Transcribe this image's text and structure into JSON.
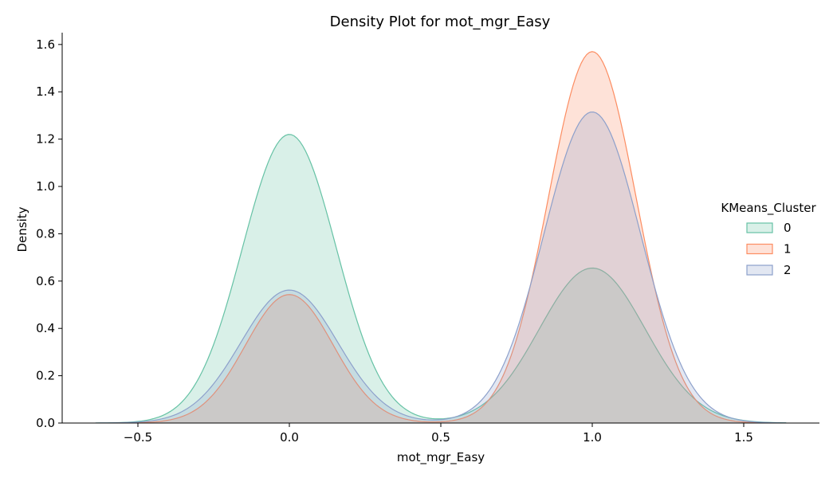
{
  "chart_data": {
    "type": "area",
    "title": "Density Plot for mot_mgr_Easy",
    "xlabel": "mot_mgr_Easy",
    "ylabel": "Density",
    "xlim": [
      -0.75,
      1.75
    ],
    "ylim": [
      0,
      1.65
    ],
    "xticks": [
      -0.5,
      0.0,
      0.5,
      1.0,
      1.5
    ],
    "xtick_labels": [
      "−0.5",
      "0.0",
      "0.5",
      "1.0",
      "1.5"
    ],
    "yticks": [
      0.0,
      0.2,
      0.4,
      0.6,
      0.8,
      1.0,
      1.2,
      1.4,
      1.6
    ],
    "ytick_labels": [
      "0.0",
      "0.2",
      "0.4",
      "0.6",
      "0.8",
      "1.0",
      "1.2",
      "1.4",
      "1.6"
    ],
    "grid": false,
    "legend": {
      "title": "KMeans_Cluster",
      "placement": "right"
    },
    "series": [
      {
        "name": "0",
        "color": "#66c2a5",
        "x_range": [
          -0.64,
          1.64
        ],
        "peaks": [
          {
            "mean": 0.0,
            "height": 1.22,
            "sd": 0.155
          },
          {
            "mean": 1.0,
            "height": 0.655,
            "sd": 0.175
          }
        ]
      },
      {
        "name": "1",
        "color": "#fc8d62",
        "x_range": [
          -0.57,
          1.57
        ],
        "peaks": [
          {
            "mean": 0.0,
            "height": 0.543,
            "sd": 0.145
          },
          {
            "mean": 1.0,
            "height": 1.57,
            "sd": 0.145
          }
        ]
      },
      {
        "name": "2",
        "color": "#8da0cb",
        "x_range": [
          -0.64,
          1.64
        ],
        "peaks": [
          {
            "mean": 0.0,
            "height": 0.562,
            "sd": 0.16
          },
          {
            "mean": 1.0,
            "height": 1.315,
            "sd": 0.16
          }
        ]
      }
    ]
  }
}
